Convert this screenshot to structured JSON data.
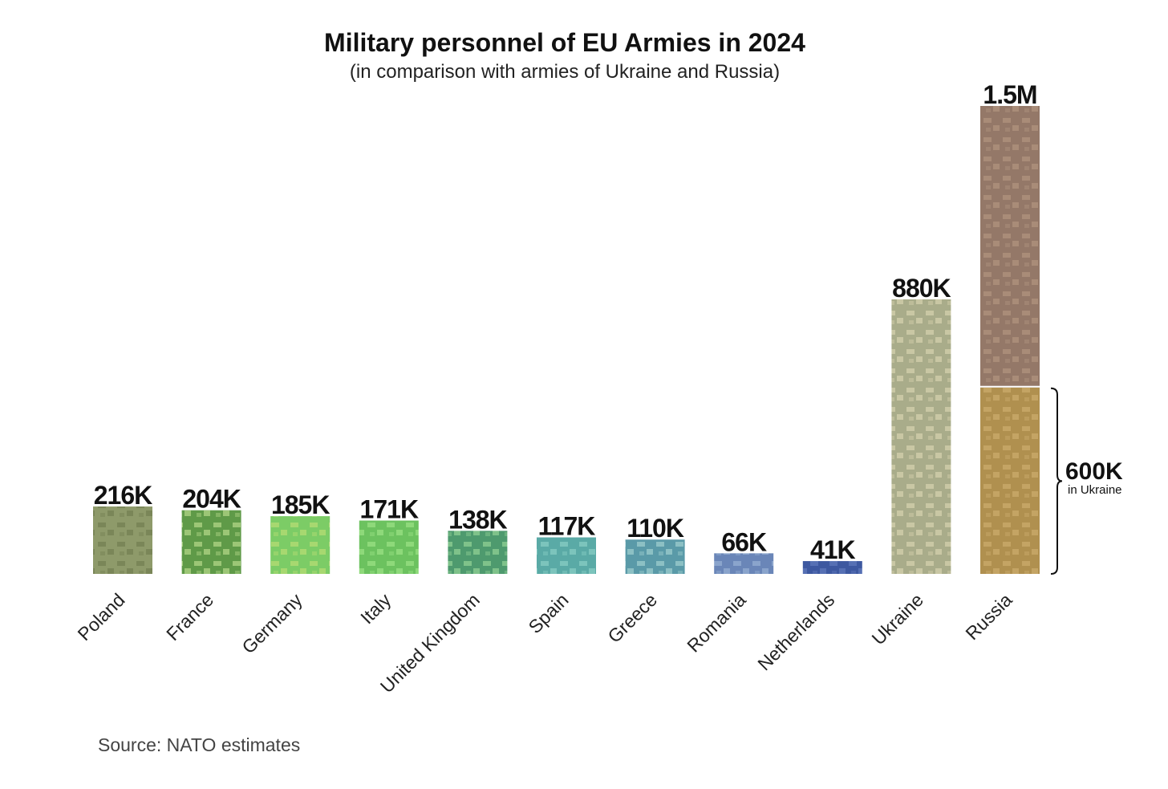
{
  "chart_data": {
    "type": "bar",
    "title": "Military personnel of EU Armies in 2024",
    "subtitle": "(in comparison with armies of Ukraine and Russia)",
    "xlabel": "",
    "ylabel": "",
    "ylim": [
      0,
      1500
    ],
    "unit": "thousands",
    "grid": false,
    "categories": [
      "Poland",
      "France",
      "Germany",
      "Italy",
      "United Kingdom",
      "Spain",
      "Greece",
      "Romania",
      "Netherlands",
      "Ukraine",
      "Russia"
    ],
    "values": [
      216,
      204,
      185,
      171,
      138,
      117,
      110,
      66,
      41,
      880,
      1500
    ],
    "labels": [
      "216K",
      "204K",
      "185K",
      "171K",
      "138K",
      "117K",
      "110K",
      "66K",
      "41K",
      "880K",
      "1.5M"
    ],
    "colors": [
      [
        "#8e9a6a",
        "#7a8658"
      ],
      [
        "#5f9a48",
        "#9cc676"
      ],
      [
        "#7ccc66",
        "#a7d870"
      ],
      [
        "#6cc25f",
        "#8ed97a"
      ],
      [
        "#4e9a6e",
        "#7fc28a"
      ],
      [
        "#5aaaa6",
        "#7cc4bc"
      ],
      [
        "#5a9aa8",
        "#8cc0c4"
      ],
      [
        "#6a86b8",
        "#8aa4cc"
      ],
      [
        "#3d58a0",
        "#5670b4"
      ],
      [
        "#a9ac8a",
        "#c9c7a4"
      ],
      [
        "#947868",
        "#a98c78"
      ]
    ],
    "annotation": {
      "category": "Russia",
      "value": 600,
      "label": "600K",
      "sublabel": "in Ukraine",
      "color": [
        "#b0904f",
        "#c4a464"
      ]
    },
    "source": "Source: NATO estimates"
  }
}
